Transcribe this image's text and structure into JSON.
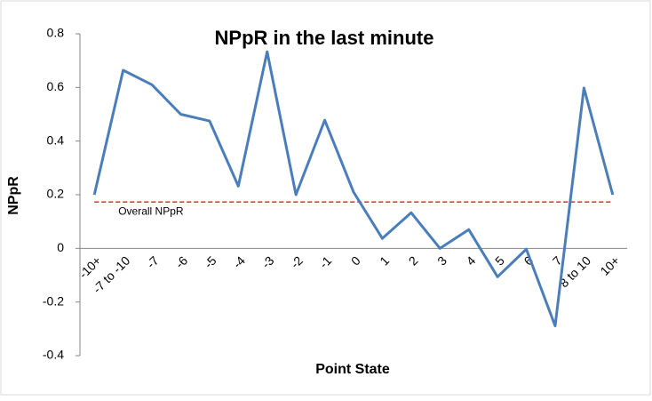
{
  "chart_data": {
    "type": "line",
    "title": "NPpR in the last minute",
    "x_label": "Point State",
    "y_label": "NPpR",
    "categories": [
      "-10+",
      "-7 to -10",
      "-7",
      "-6",
      "-5",
      "-4",
      "-3",
      "-2",
      "-1",
      "0",
      "1",
      "2",
      "3",
      "4",
      "5",
      "6",
      "7",
      "8 to 10",
      "10+"
    ],
    "values": [
      0.2,
      0.664,
      0.61,
      0.5,
      0.475,
      0.232,
      0.733,
      0.2,
      0.478,
      0.21,
      0.037,
      0.133,
      0.0,
      0.07,
      -0.106,
      -0.003,
      -0.289,
      0.598,
      0.2
    ],
    "color": "#4a7ebb",
    "ylim": [
      -0.4,
      0.8
    ],
    "yticks": [
      -0.4,
      -0.2,
      0,
      0.2,
      0.4,
      0.6,
      0.8
    ],
    "grid": false,
    "reference_line": {
      "value": 0.173,
      "label": "Overall NPpR",
      "color": "#e00000"
    }
  }
}
